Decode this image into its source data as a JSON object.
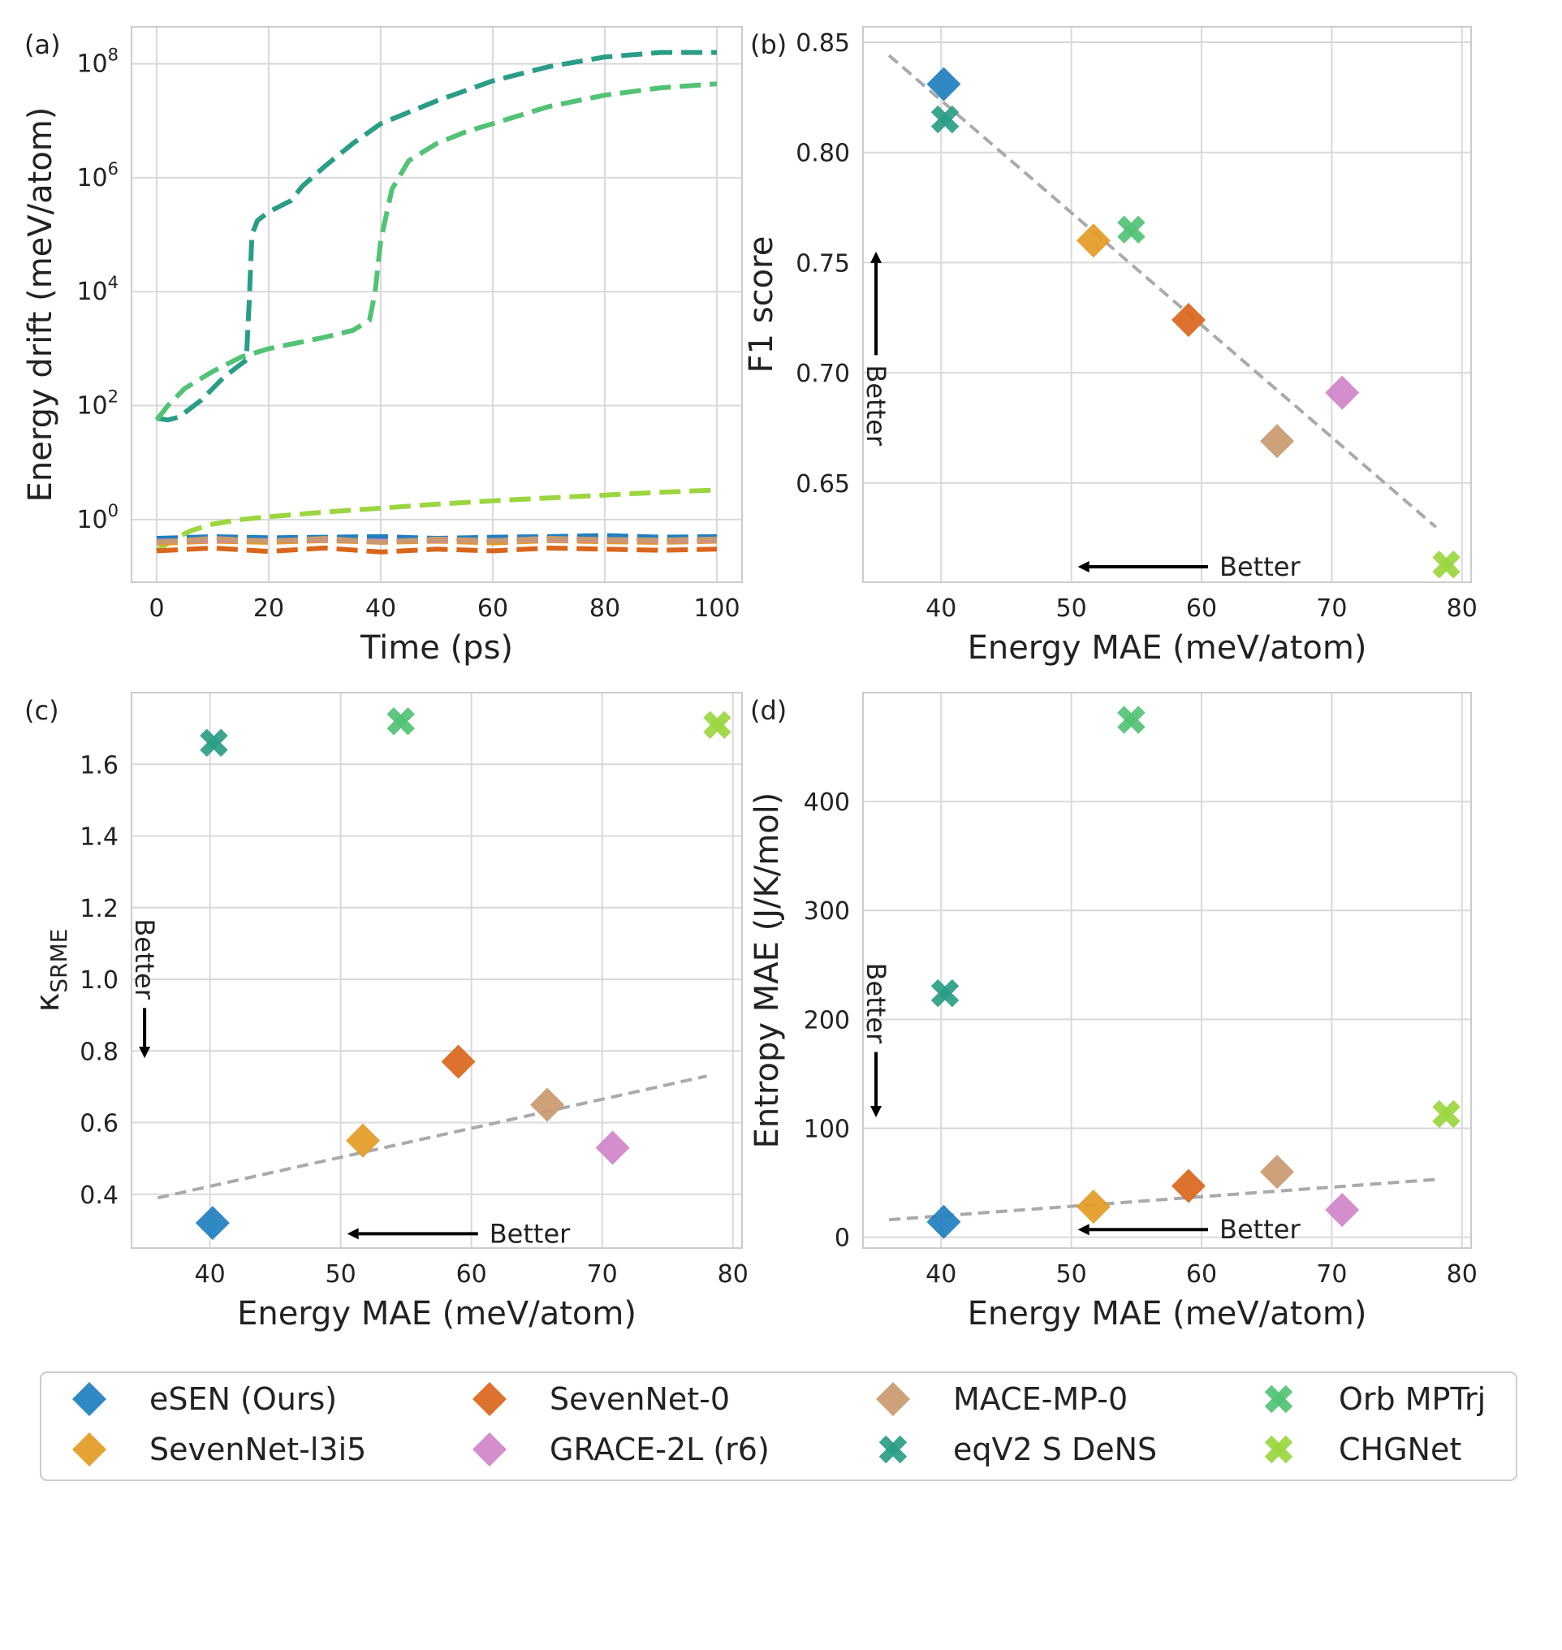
{
  "colors": {
    "eSEN (Ours)": "#1f7fbf",
    "SevenNet-l3i5": "#e39a24",
    "SevenNet-0": "#d9661c",
    "GRACE-2L (r6)": "#d083c9",
    "MACE-MP-0": "#c9996f",
    "eqV2 S DeNS": "#2a9d87",
    "Orb MPTrj": "#52c275",
    "CHGNet": "#9bd63f",
    "grid": "#d9d9d9",
    "spine": "#cccccc",
    "fit": "#aaaaaa",
    "arrow": "#000000"
  },
  "better_label": "Better",
  "legend": {
    "items": [
      {
        "name": "eSEN (Ours)",
        "marker": "diamond"
      },
      {
        "name": "SevenNet-0",
        "marker": "diamond"
      },
      {
        "name": "MACE-MP-0",
        "marker": "diamond"
      },
      {
        "name": "Orb MPTrj",
        "marker": "cross"
      },
      {
        "name": "SevenNet-l3i5",
        "marker": "diamond"
      },
      {
        "name": "GRACE-2L (r6)",
        "marker": "diamond"
      },
      {
        "name": "eqV2 S DeNS",
        "marker": "cross"
      },
      {
        "name": "CHGNet",
        "marker": "cross"
      }
    ]
  },
  "chart_data": [
    {
      "id": "a",
      "panel_label": "(a)",
      "type": "line",
      "xlabel": "Time (ps)",
      "ylabel": "Energy drift (meV/atom)",
      "yscale": "log",
      "xlim": [
        -4.5,
        104.5
      ],
      "ylim_log10": [
        -1.1,
        8.65
      ],
      "xticks": [
        {
          "v": 0,
          "label": "0"
        },
        {
          "v": 20,
          "label": "20"
        },
        {
          "v": 40,
          "label": "40"
        },
        {
          "v": 60,
          "label": "60"
        },
        {
          "v": 80,
          "label": "80"
        },
        {
          "v": 100,
          "label": "100"
        }
      ],
      "yticks": [
        {
          "exp": 0,
          "label": "10",
          "sup": "0"
        },
        {
          "exp": 2,
          "label": "10",
          "sup": "2"
        },
        {
          "exp": 4,
          "label": "10",
          "sup": "4"
        },
        {
          "exp": 6,
          "label": "10",
          "sup": "6"
        },
        {
          "exp": 8,
          "label": "10",
          "sup": "8"
        }
      ],
      "series": [
        {
          "name": "eqV2 S DeNS",
          "x": [
            0,
            2,
            4,
            8,
            12,
            16,
            16.5,
            17,
            18,
            20,
            22,
            24,
            26,
            30,
            35,
            40,
            50,
            60,
            70,
            80,
            90,
            100
          ],
          "log10": [
            1.78,
            1.75,
            1.8,
            2.1,
            2.5,
            2.8,
            3.8,
            5.0,
            5.25,
            5.4,
            5.5,
            5.6,
            5.85,
            6.2,
            6.6,
            6.95,
            7.35,
            7.7,
            7.95,
            8.12,
            8.2,
            8.2
          ]
        },
        {
          "name": "Orb MPTrj",
          "x": [
            0,
            2,
            5,
            10,
            15,
            20,
            25,
            30,
            35,
            38,
            39,
            40,
            42,
            45,
            50,
            55,
            60,
            70,
            80,
            90,
            100
          ],
          "log10": [
            1.75,
            2.0,
            2.3,
            2.6,
            2.85,
            3.0,
            3.1,
            3.2,
            3.32,
            3.5,
            4.0,
            4.9,
            5.8,
            6.3,
            6.6,
            6.8,
            6.95,
            7.25,
            7.45,
            7.58,
            7.65
          ]
        },
        {
          "name": "CHGNet",
          "x": [
            0,
            3,
            6,
            10,
            15,
            20,
            30,
            40,
            50,
            60,
            70,
            80,
            90,
            100
          ],
          "log10": [
            -0.55,
            -0.35,
            -0.2,
            -0.08,
            0.0,
            0.05,
            0.13,
            0.2,
            0.27,
            0.33,
            0.38,
            0.43,
            0.48,
            0.52
          ]
        },
        {
          "name": "eSEN (Ours)",
          "x": [
            0,
            10,
            20,
            30,
            40,
            50,
            60,
            70,
            80,
            90,
            100
          ],
          "log10": [
            -0.33,
            -0.3,
            -0.32,
            -0.31,
            -0.3,
            -0.33,
            -0.31,
            -0.3,
            -0.28,
            -0.31,
            -0.3
          ]
        },
        {
          "name": "SevenNet-l3i5",
          "x": [
            0,
            10,
            20,
            30,
            40,
            50,
            60,
            70,
            80,
            90,
            100
          ],
          "log10": [
            -0.42,
            -0.38,
            -0.4,
            -0.37,
            -0.4,
            -0.38,
            -0.41,
            -0.37,
            -0.39,
            -0.4,
            -0.38
          ]
        },
        {
          "name": "GRACE-2L (r6)",
          "x": [
            0,
            10,
            20,
            30,
            40,
            50,
            60,
            70,
            80,
            90,
            100
          ],
          "log10": [
            -0.38,
            -0.36,
            -0.37,
            -0.35,
            -0.38,
            -0.36,
            -0.37,
            -0.35,
            -0.36,
            -0.37,
            -0.36
          ]
        },
        {
          "name": "MACE-MP-0",
          "x": [
            0,
            10,
            20,
            30,
            40,
            50,
            60,
            70,
            80,
            90,
            100
          ],
          "log10": [
            -0.4,
            -0.33,
            -0.38,
            -0.33,
            -0.4,
            -0.34,
            -0.37,
            -0.33,
            -0.35,
            -0.36,
            -0.34
          ]
        },
        {
          "name": "SevenNet-0",
          "x": [
            0,
            10,
            20,
            30,
            40,
            50,
            60,
            70,
            80,
            90,
            100
          ],
          "log10": [
            -0.55,
            -0.5,
            -0.56,
            -0.5,
            -0.57,
            -0.52,
            -0.55,
            -0.5,
            -0.52,
            -0.54,
            -0.52
          ]
        }
      ]
    },
    {
      "id": "b",
      "panel_label": "(b)",
      "type": "scatter",
      "xlabel": "Energy MAE (meV/atom)",
      "ylabel": "F1 score",
      "xlim": [
        34,
        80.7
      ],
      "ylim": [
        0.605,
        0.857
      ],
      "xticks": [
        {
          "v": 40,
          "label": "40"
        },
        {
          "v": 50,
          "label": "50"
        },
        {
          "v": 60,
          "label": "60"
        },
        {
          "v": 70,
          "label": "70"
        },
        {
          "v": 80,
          "label": "80"
        }
      ],
      "yticks": [
        {
          "v": 0.65,
          "label": "0.65"
        },
        {
          "v": 0.7,
          "label": "0.70"
        },
        {
          "v": 0.75,
          "label": "0.75"
        },
        {
          "v": 0.8,
          "label": "0.80"
        },
        {
          "v": 0.85,
          "label": "0.85"
        }
      ],
      "fit_line": {
        "x": [
          36,
          78
        ],
        "y": [
          0.844,
          0.63
        ]
      },
      "better_x_arrow": {
        "from": 60.5,
        "to": 50.5,
        "y": 0.612
      },
      "better_y_arrow": {
        "x": 35,
        "from": 0.708,
        "to": 0.755
      },
      "points": [
        {
          "name": "eSEN (Ours)",
          "x": 40.2,
          "y": 0.831
        },
        {
          "name": "eqV2 S DeNS",
          "x": 40.3,
          "y": 0.815
        },
        {
          "name": "SevenNet-l3i5",
          "x": 51.7,
          "y": 0.76
        },
        {
          "name": "Orb MPTrj",
          "x": 54.6,
          "y": 0.765
        },
        {
          "name": "SevenNet-0",
          "x": 59.0,
          "y": 0.724
        },
        {
          "name": "MACE-MP-0",
          "x": 65.8,
          "y": 0.669
        },
        {
          "name": "GRACE-2L (r6)",
          "x": 70.8,
          "y": 0.691
        },
        {
          "name": "CHGNet",
          "x": 78.8,
          "y": 0.613
        }
      ]
    },
    {
      "id": "c",
      "panel_label": "(c)",
      "type": "scatter",
      "xlabel": "Energy MAE (meV/atom)",
      "ylabel": "κSRME",
      "ylabel_main": "κ",
      "ylabel_sub": "SRME",
      "xlim": [
        34,
        80.7
      ],
      "ylim": [
        0.25,
        1.8
      ],
      "xticks": [
        {
          "v": 40,
          "label": "40"
        },
        {
          "v": 50,
          "label": "50"
        },
        {
          "v": 60,
          "label": "60"
        },
        {
          "v": 70,
          "label": "70"
        },
        {
          "v": 80,
          "label": "80"
        }
      ],
      "yticks": [
        {
          "v": 0.4,
          "label": "0.4"
        },
        {
          "v": 0.6,
          "label": "0.6"
        },
        {
          "v": 0.8,
          "label": "0.8"
        },
        {
          "v": 1.0,
          "label": "1.0"
        },
        {
          "v": 1.2,
          "label": "1.2"
        },
        {
          "v": 1.4,
          "label": "1.4"
        },
        {
          "v": 1.6,
          "label": "1.6"
        }
      ],
      "fit_line": {
        "x": [
          36,
          78
        ],
        "y": [
          0.39,
          0.73
        ]
      },
      "better_x_arrow": {
        "from": 60.5,
        "to": 50.5,
        "y": 0.29
      },
      "better_y_arrow": {
        "x": 35,
        "from": 0.92,
        "to": 0.78
      },
      "points": [
        {
          "name": "eSEN (Ours)",
          "x": 40.2,
          "y": 0.32
        },
        {
          "name": "eqV2 S DeNS",
          "x": 40.3,
          "y": 1.66
        },
        {
          "name": "SevenNet-l3i5",
          "x": 51.7,
          "y": 0.55
        },
        {
          "name": "Orb MPTrj",
          "x": 54.6,
          "y": 1.72
        },
        {
          "name": "SevenNet-0",
          "x": 59.0,
          "y": 0.77
        },
        {
          "name": "MACE-MP-0",
          "x": 65.8,
          "y": 0.65
        },
        {
          "name": "GRACE-2L (r6)",
          "x": 70.8,
          "y": 0.53
        },
        {
          "name": "CHGNet",
          "x": 78.8,
          "y": 1.71
        }
      ]
    },
    {
      "id": "d",
      "panel_label": "(d)",
      "type": "scatter",
      "xlabel": "Energy MAE (meV/atom)",
      "ylabel": "Entropy MAE (J/K/mol)",
      "xlim": [
        34,
        80.7
      ],
      "ylim": [
        -10,
        500
      ],
      "xticks": [
        {
          "v": 40,
          "label": "40"
        },
        {
          "v": 50,
          "label": "50"
        },
        {
          "v": 60,
          "label": "60"
        },
        {
          "v": 70,
          "label": "70"
        },
        {
          "v": 80,
          "label": "80"
        }
      ],
      "yticks": [
        {
          "v": 0,
          "label": "0"
        },
        {
          "v": 100,
          "label": "100"
        },
        {
          "v": 200,
          "label": "200"
        },
        {
          "v": 300,
          "label": "300"
        },
        {
          "v": 400,
          "label": "400"
        }
      ],
      "fit_line": {
        "x": [
          36,
          78
        ],
        "y": [
          16,
          53
        ]
      },
      "better_x_arrow": {
        "from": 60.5,
        "to": 50.5,
        "y": 7
      },
      "better_y_arrow": {
        "x": 35,
        "from": 170,
        "to": 110
      },
      "points": [
        {
          "name": "eSEN (Ours)",
          "x": 40.2,
          "y": 14
        },
        {
          "name": "eqV2 S DeNS",
          "x": 40.3,
          "y": 224
        },
        {
          "name": "SevenNet-l3i5",
          "x": 51.7,
          "y": 28
        },
        {
          "name": "Orb MPTrj",
          "x": 54.6,
          "y": 475
        },
        {
          "name": "SevenNet-0",
          "x": 59.0,
          "y": 47
        },
        {
          "name": "MACE-MP-0",
          "x": 65.8,
          "y": 60
        },
        {
          "name": "GRACE-2L (r6)",
          "x": 70.8,
          "y": 25
        },
        {
          "name": "CHGNet",
          "x": 78.8,
          "y": 113
        }
      ]
    }
  ]
}
